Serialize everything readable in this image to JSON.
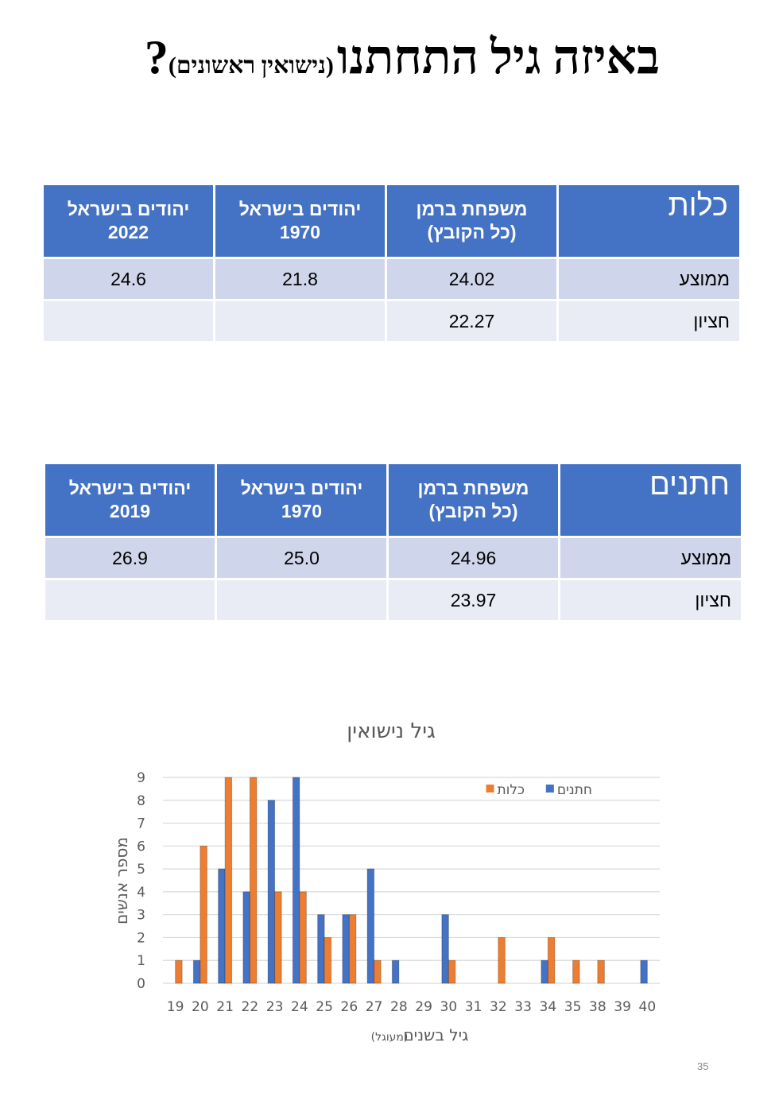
{
  "title": {
    "main": "באיזה גיל התחתנו",
    "note": "(נישואין ראשונים)",
    "mark": "?"
  },
  "tables": [
    {
      "header": [
        [
          "כלות"
        ],
        [
          "משפחת ברמן",
          "(כל הקובץ)"
        ],
        [
          "יהודים בישראל",
          "1970"
        ],
        [
          "יהודים בישראל",
          "2022"
        ]
      ],
      "rows": [
        [
          "ממוצע",
          "24.02",
          "21.8",
          "24.6"
        ],
        [
          "חציון",
          "22.27",
          null,
          null
        ]
      ]
    },
    {
      "header": [
        [
          "חתנים"
        ],
        [
          "משפחת ברמן",
          "(כל הקובץ)"
        ],
        [
          "יהודים בישראל",
          "1970"
        ],
        [
          "יהודים בישראל",
          "2019"
        ]
      ],
      "rows": [
        [
          "ממוצע",
          "24.96",
          "25.0",
          "26.9"
        ],
        [
          "חציון",
          "23.97",
          null,
          null
        ]
      ]
    }
  ],
  "chart_data": {
    "type": "bar",
    "title": "גיל נישואין",
    "y_label": "מספר אנשים",
    "x_label": "גיל בשנים",
    "x_label_note": "(מעוגל)",
    "categories": [
      "19",
      "20",
      "21",
      "22",
      "23",
      "24",
      "25",
      "26",
      "27",
      "28",
      "29",
      "30",
      "31",
      "32",
      "33",
      "34",
      "35",
      "38",
      "39",
      "40"
    ],
    "series": [
      {
        "name": "חתנים",
        "color": "#4472c4",
        "values": [
          0,
          1,
          5,
          4,
          8,
          9,
          3,
          3,
          5,
          1,
          0,
          3,
          0,
          0,
          0,
          1,
          0,
          0,
          0,
          1
        ]
      },
      {
        "name": "כלות",
        "color": "#ed7d31",
        "values": [
          1,
          6,
          9,
          9,
          4,
          4,
          2,
          3,
          1,
          0,
          0,
          1,
          0,
          2,
          0,
          2,
          1,
          1,
          0,
          0
        ]
      }
    ],
    "ylim": [
      0,
      9
    ],
    "yticks": [
      0,
      1,
      2,
      3,
      4,
      5,
      6,
      7,
      8,
      9
    ],
    "grid": true,
    "legend": "top-right"
  },
  "page_number": "35"
}
